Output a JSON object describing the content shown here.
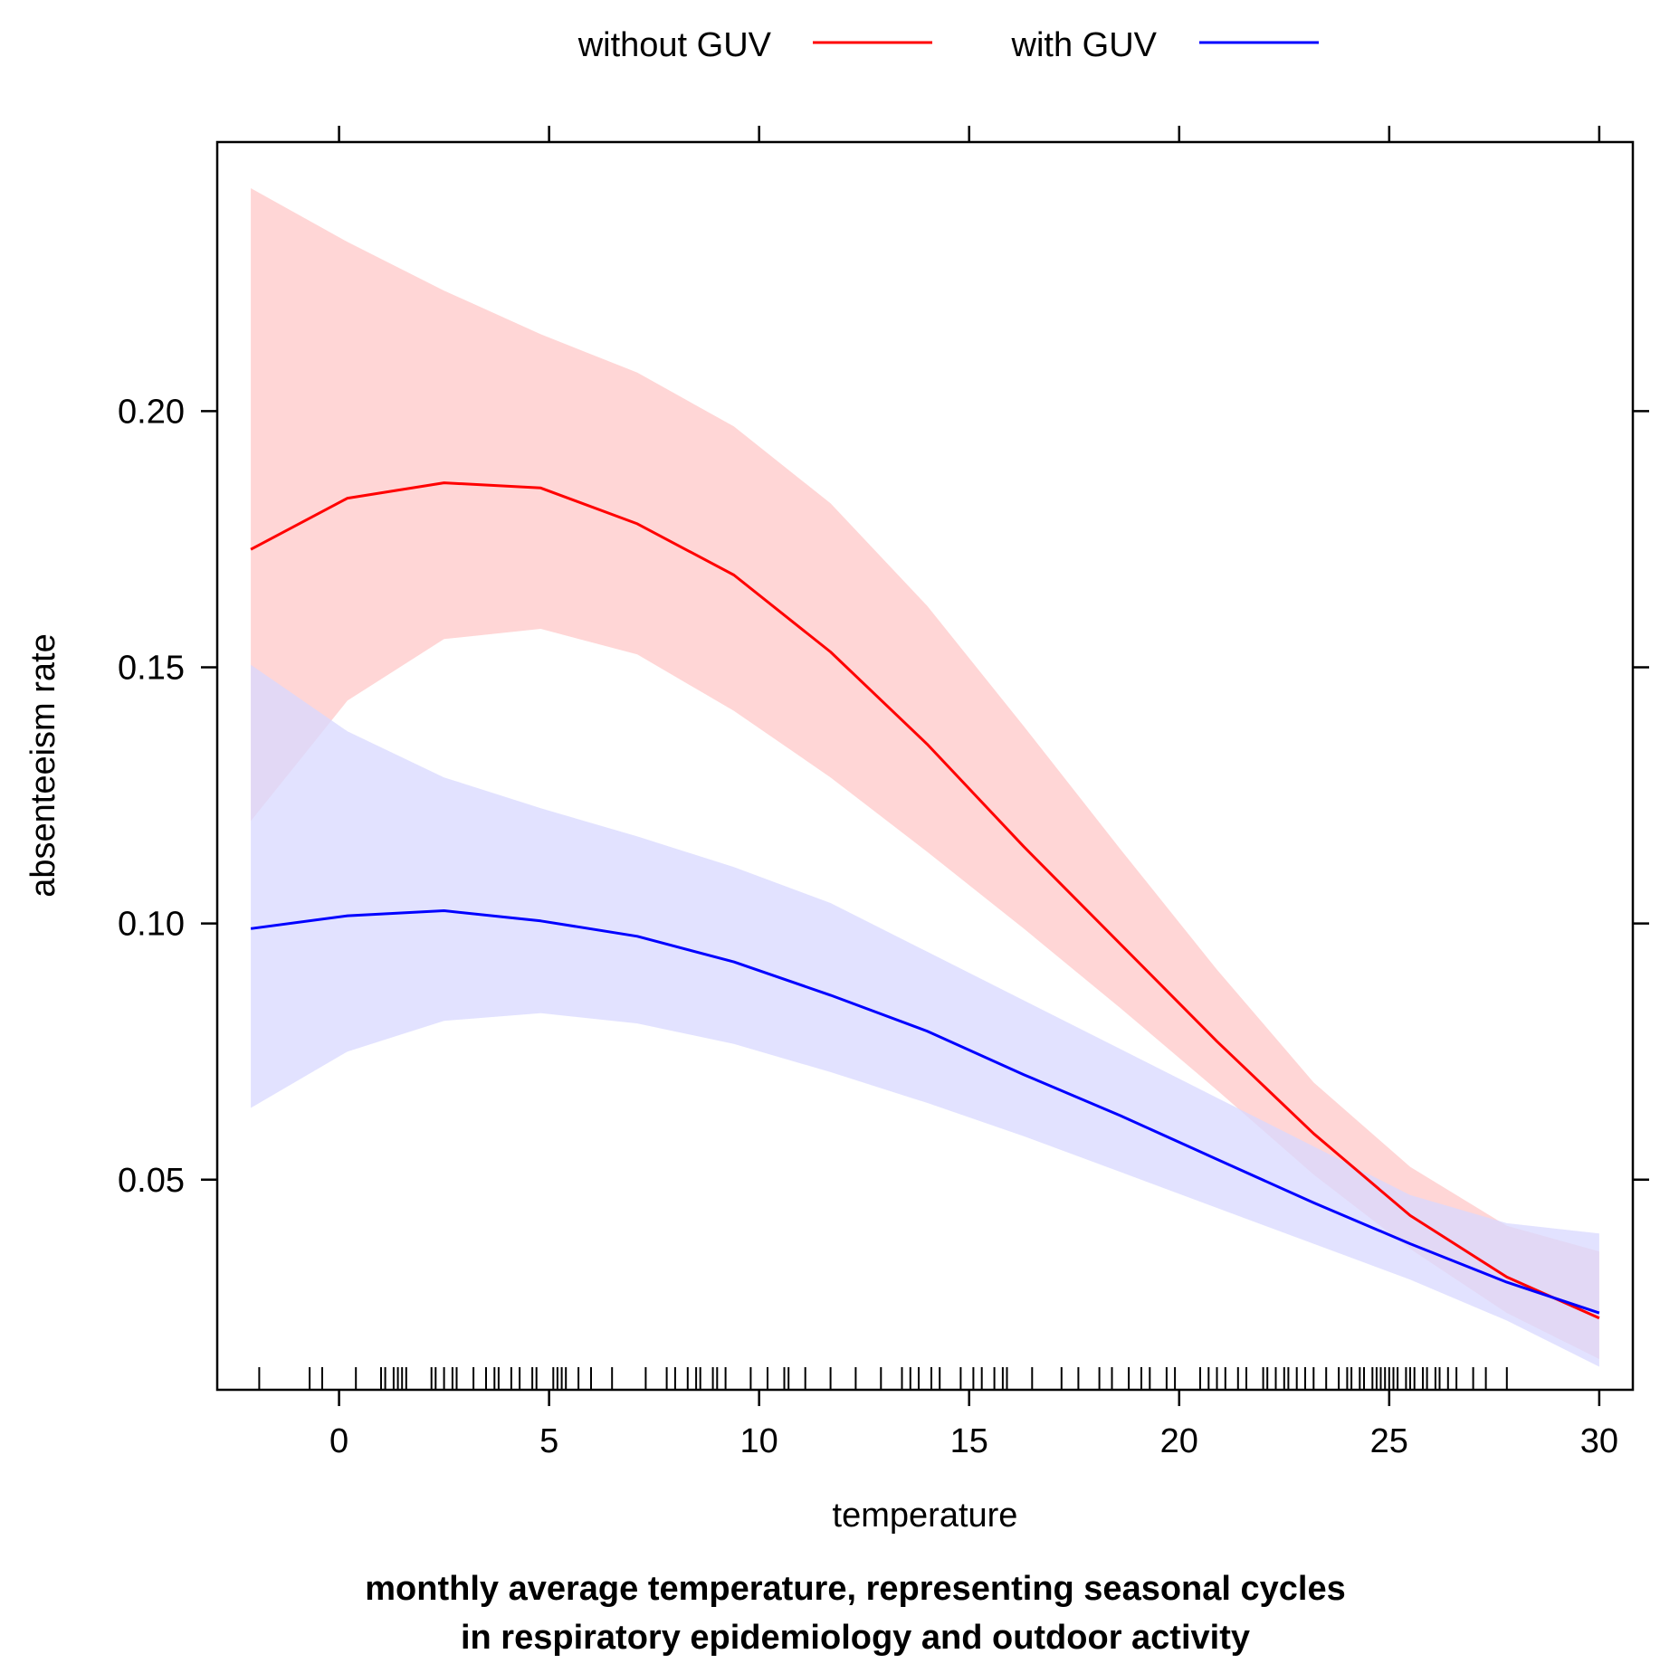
{
  "chart_data": {
    "type": "line",
    "title": "",
    "xlabel": "temperature",
    "ylabel": "absenteeism rate",
    "caption": [
      "monthly average temperature, representing seasonal cycles",
      "in respiratory epidemiology and outdoor activity"
    ],
    "xlim": [
      -2.9,
      30.8
    ],
    "ylim": [
      0.009,
      0.2525
    ],
    "xticks": [
      0,
      5,
      10,
      15,
      20,
      25,
      30
    ],
    "xtick_labels": [
      "0",
      "5",
      "10",
      "15",
      "20",
      "25",
      "30"
    ],
    "yticks": [
      0.05,
      0.1,
      0.15,
      0.2
    ],
    "ytick_labels": [
      "0.05",
      "0.10",
      "0.15",
      "0.20"
    ],
    "legend": {
      "placement": "top",
      "entries": [
        {
          "label": "without GUV",
          "color": "#ff0000"
        },
        {
          "label": "with GUV",
          "color": "#0000ff"
        }
      ]
    },
    "x": [
      -2.1,
      0.2,
      2.5,
      4.8,
      7.1,
      9.4,
      11.7,
      14.0,
      16.3,
      18.6,
      20.9,
      23.2,
      25.5,
      27.8,
      30.0
    ],
    "series": [
      {
        "name": "without GUV",
        "color": "#ff0000",
        "band_color": "#ffd6d6",
        "values": [
          0.173,
          0.183,
          0.186,
          0.185,
          0.178,
          0.168,
          0.153,
          0.135,
          0.115,
          0.096,
          0.077,
          0.059,
          0.043,
          0.031,
          0.023
        ],
        "upper": [
          0.2435,
          0.233,
          0.2235,
          0.215,
          0.2075,
          0.197,
          0.182,
          0.162,
          0.1385,
          0.1145,
          0.091,
          0.069,
          0.0525,
          0.041,
          0.036
        ],
        "lower": [
          0.12,
          0.1435,
          0.1555,
          0.1575,
          0.1525,
          0.1415,
          0.1285,
          0.114,
          0.099,
          0.0835,
          0.0675,
          0.051,
          0.0365,
          0.024,
          0.015
        ]
      },
      {
        "name": "with GUV",
        "color": "#0000ff",
        "band_color": "#d8d8ff",
        "values": [
          0.099,
          0.1015,
          0.1025,
          0.1005,
          0.0975,
          0.0925,
          0.086,
          0.079,
          0.0705,
          0.0625,
          0.054,
          0.0455,
          0.0375,
          0.03,
          0.024
        ],
        "upper": [
          0.1505,
          0.1375,
          0.1285,
          0.1225,
          0.117,
          0.111,
          0.104,
          0.0945,
          0.085,
          0.0755,
          0.066,
          0.0565,
          0.047,
          0.0415,
          0.0395
        ],
        "lower": [
          0.064,
          0.075,
          0.081,
          0.0825,
          0.0805,
          0.0765,
          0.071,
          0.065,
          0.0585,
          0.0515,
          0.0445,
          0.0375,
          0.0305,
          0.0225,
          0.0135
        ]
      }
    ],
    "rug": [
      -1.9,
      -0.7,
      -0.4,
      0.4,
      1.0,
      1.1,
      1.3,
      1.4,
      1.5,
      1.6,
      2.2,
      2.3,
      2.5,
      2.7,
      2.8,
      3.2,
      3.5,
      3.7,
      3.8,
      4.1,
      4.3,
      4.6,
      4.7,
      5.1,
      5.2,
      5.3,
      5.4,
      5.7,
      6.0,
      6.5,
      7.3,
      7.8,
      8.0,
      8.3,
      8.5,
      8.6,
      8.9,
      9.0,
      9.2,
      9.8,
      10.2,
      10.6,
      10.7,
      11.1,
      11.7,
      12.3,
      12.9,
      13.4,
      13.6,
      13.8,
      14.1,
      14.3,
      14.8,
      15.1,
      15.3,
      15.6,
      15.8,
      15.9,
      16.5,
      17.2,
      17.6,
      18.1,
      18.4,
      18.8,
      19.1,
      19.3,
      19.7,
      19.9,
      20.5,
      20.7,
      20.9,
      21.1,
      21.4,
      21.6,
      22.0,
      22.1,
      22.3,
      22.5,
      22.6,
      22.8,
      23.0,
      23.2,
      23.5,
      23.8,
      24.0,
      24.1,
      24.3,
      24.4,
      24.6,
      24.7,
      24.8,
      24.9,
      25.0,
      25.1,
      25.2,
      25.4,
      25.5,
      25.6,
      25.8,
      25.9,
      26.1,
      26.2,
      26.4,
      26.6,
      27.0,
      27.3,
      27.8
    ]
  }
}
